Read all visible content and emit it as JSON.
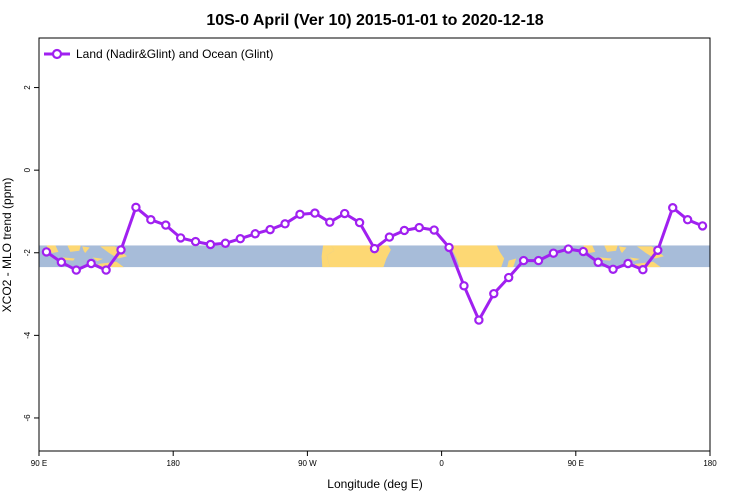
{
  "chart_data": {
    "type": "line",
    "title": "10S-0 April (Ver 10)   2015-01-01 to 2020-12-18",
    "xlabel": "Longitude (deg E)",
    "ylabel": "XCO2 - MLO trend (ppm)",
    "xlim": [
      90,
      540
    ],
    "ylim": [
      -6.8,
      3.2
    ],
    "xticks": [
      {
        "value": 90,
        "label": "90 E"
      },
      {
        "value": 180,
        "label": "180"
      },
      {
        "value": 270,
        "label": "90 W"
      },
      {
        "value": 360,
        "label": "0"
      },
      {
        "value": 450,
        "label": "90 E"
      },
      {
        "value": 540,
        "label": "180"
      }
    ],
    "yticks": [
      {
        "value": 2,
        "label": "2"
      },
      {
        "value": 0,
        "label": "0"
      },
      {
        "value": -2,
        "label": "-2"
      },
      {
        "value": -4,
        "label": "-4"
      },
      {
        "value": -6,
        "label": "-6"
      }
    ],
    "grid": false,
    "legend": {
      "position": "top-left"
    },
    "colors": {
      "series": "#a020f0",
      "ocean": "#a7bcd9",
      "land": "#fdd874"
    },
    "map_band": {
      "y_range": [
        -2.35,
        -1.82
      ]
    },
    "series": [
      {
        "name": "Land (Nadir&Glint) and Ocean (Glint)",
        "x": [
          95,
          105,
          115,
          125,
          135,
          145,
          155,
          165,
          175,
          185,
          195,
          205,
          215,
          225,
          235,
          245,
          255,
          265,
          275,
          285,
          295,
          305,
          315,
          325,
          335,
          345,
          355,
          365,
          375,
          385,
          395,
          405,
          415,
          425,
          435,
          445,
          455,
          465,
          475,
          485,
          495,
          505,
          515,
          525,
          535
        ],
        "y": [
          -1.98,
          -2.23,
          -2.42,
          -2.26,
          -2.42,
          -1.93,
          -0.9,
          -1.2,
          -1.33,
          -1.64,
          -1.73,
          -1.8,
          -1.77,
          -1.66,
          -1.54,
          -1.44,
          -1.3,
          -1.07,
          -1.04,
          -1.26,
          -1.05,
          -1.27,
          -1.9,
          -1.62,
          -1.46,
          -1.39,
          -1.45,
          -1.87,
          -2.8,
          -3.63,
          -2.99,
          -2.6,
          -2.19,
          -2.19,
          -2.01,
          -1.91,
          -1.97,
          -2.23,
          -2.4,
          -2.26,
          -2.41,
          -1.94,
          -0.91,
          -1.2,
          -1.35
        ]
      }
    ]
  }
}
